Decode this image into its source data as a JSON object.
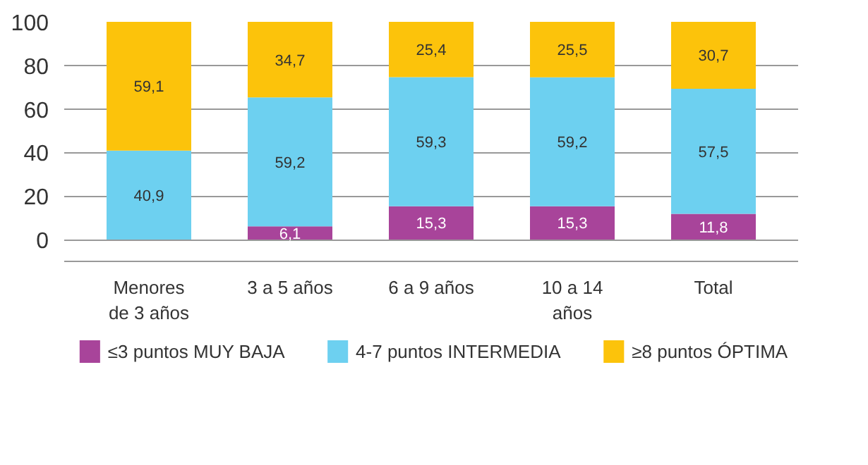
{
  "chart_data": {
    "type": "bar",
    "stacked": true,
    "categories": [
      "Menores\nde 3 años",
      "3 a 5 años",
      "6 a 9 años",
      "10 a 14\naños",
      "Total"
    ],
    "series": [
      {
        "name": "≤3 puntos MUY BAJA",
        "color": "#a8449a",
        "values": [
          null,
          6.1,
          15.3,
          15.3,
          11.8
        ],
        "value_labels": [
          null,
          "6,1",
          "15,3",
          "15,3",
          "11,8"
        ]
      },
      {
        "name": "4-7 puntos INTERMEDIA",
        "color": "#6dd0f0",
        "values": [
          40.9,
          59.2,
          59.3,
          59.2,
          57.5
        ],
        "value_labels": [
          "40,9",
          "59,2",
          "59,3",
          "59,2",
          "57,5"
        ]
      },
      {
        "name": "≥8 puntos ÓPTIMA",
        "color": "#fcc30b",
        "values": [
          59.1,
          34.7,
          25.4,
          25.5,
          30.7
        ],
        "value_labels": [
          "59,1",
          "34,7",
          "25,4",
          "25,5",
          "30,7"
        ]
      }
    ],
    "ylim": [
      -10,
      100
    ],
    "yticks": [
      0,
      20,
      40,
      60,
      80,
      100
    ],
    "grid": "y",
    "legend": "bottom"
  }
}
